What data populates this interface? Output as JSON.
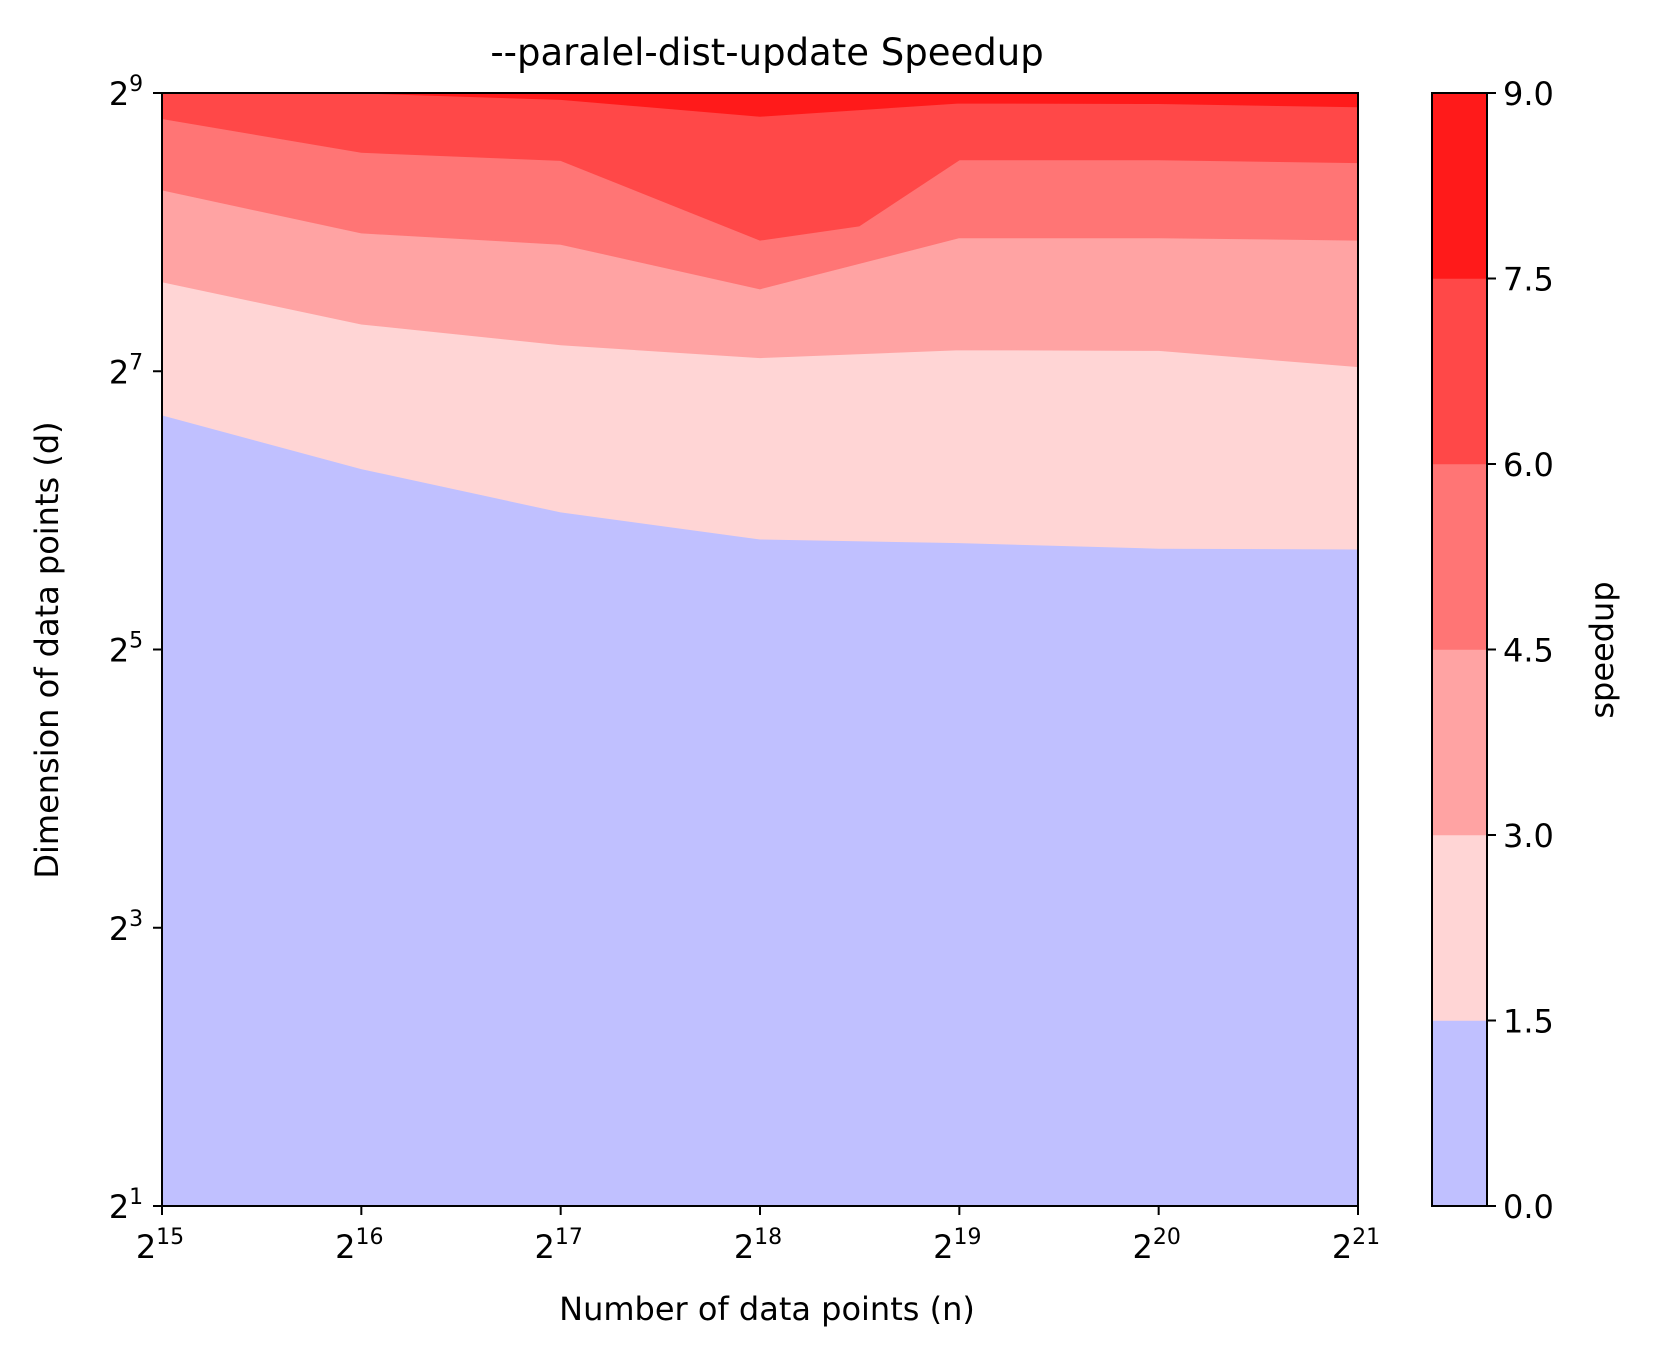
{
  "chart_data": {
    "type": "contourf",
    "title": "--paralel-dist-update Speedup",
    "xlabel": "Number of data points (n)",
    "ylabel": "Dimension of data points (d)",
    "colorbar_label": "speedup",
    "x_scale": "log2",
    "y_scale": "log2",
    "xlim": [
      32768,
      2097152
    ],
    "ylim": [
      2,
      512
    ],
    "x_ticks": [
      {
        "base": "2",
        "exp": "15"
      },
      {
        "base": "2",
        "exp": "16"
      },
      {
        "base": "2",
        "exp": "17"
      },
      {
        "base": "2",
        "exp": "18"
      },
      {
        "base": "2",
        "exp": "19"
      },
      {
        "base": "2",
        "exp": "20"
      },
      {
        "base": "2",
        "exp": "21"
      }
    ],
    "y_ticks": [
      {
        "base": "2",
        "exp": "1"
      },
      {
        "base": "2",
        "exp": "3"
      },
      {
        "base": "2",
        "exp": "5"
      },
      {
        "base": "2",
        "exp": "7"
      },
      {
        "base": "2",
        "exp": "9"
      }
    ],
    "x": [
      32768,
      65536,
      131072,
      262144,
      524288,
      1048576,
      2097152
    ],
    "levels": [
      0.0,
      1.5,
      3.0,
      4.5,
      6.0,
      7.5,
      9.0
    ],
    "level_labels": [
      "0.0",
      "1.5",
      "3.0",
      "4.5",
      "6.0",
      "7.5",
      "9.0"
    ],
    "colors": [
      "#c0c0ff",
      "#ffd5d5",
      "#ffa3a3",
      "#ff7575",
      "#ff4848",
      "#ff1a1a"
    ],
    "band_boundaries_d": [
      {
        "speedup": 1.5,
        "x": [
          32768,
          65536,
          131072,
          262144,
          524288,
          1048576,
          2097152
        ],
        "d": [
          103.0,
          78.8,
          63.5,
          55.5,
          54.5,
          53.0,
          52.8
        ]
      },
      {
        "speedup": 3.0,
        "x": [
          32768,
          65536,
          131072,
          262144,
          524288,
          1048576,
          2097152
        ],
        "d": [
          200.0,
          162.0,
          146.0,
          137.0,
          142.5,
          142.0,
          131.0
        ]
      },
      {
        "speedup": 4.5,
        "x": [
          32768,
          65536,
          131072,
          262144,
          262144,
          524288,
          1048576,
          2097152
        ],
        "d": [
          316.0,
          255.0,
          241.0,
          193.0,
          193.0,
          249.0,
          249.0,
          246.0
        ]
      },
      {
        "speedup": 6.0,
        "x": [
          32768,
          65536,
          131072,
          262144,
          370000,
          524288,
          1048576,
          2097152
        ],
        "d": [
          451.0,
          381.0,
          366.0,
          246.0,
          264.0,
          367.0,
          367.0,
          362.0
        ]
      },
      {
        "speedup": 7.5,
        "x": [
          32768,
          65536,
          131072,
          262144,
          524288,
          1048576,
          2097152
        ],
        "d": [
          512,
          512,
          496.0,
          456.0,
          487.0,
          486.0,
          478.0
        ]
      }
    ]
  }
}
